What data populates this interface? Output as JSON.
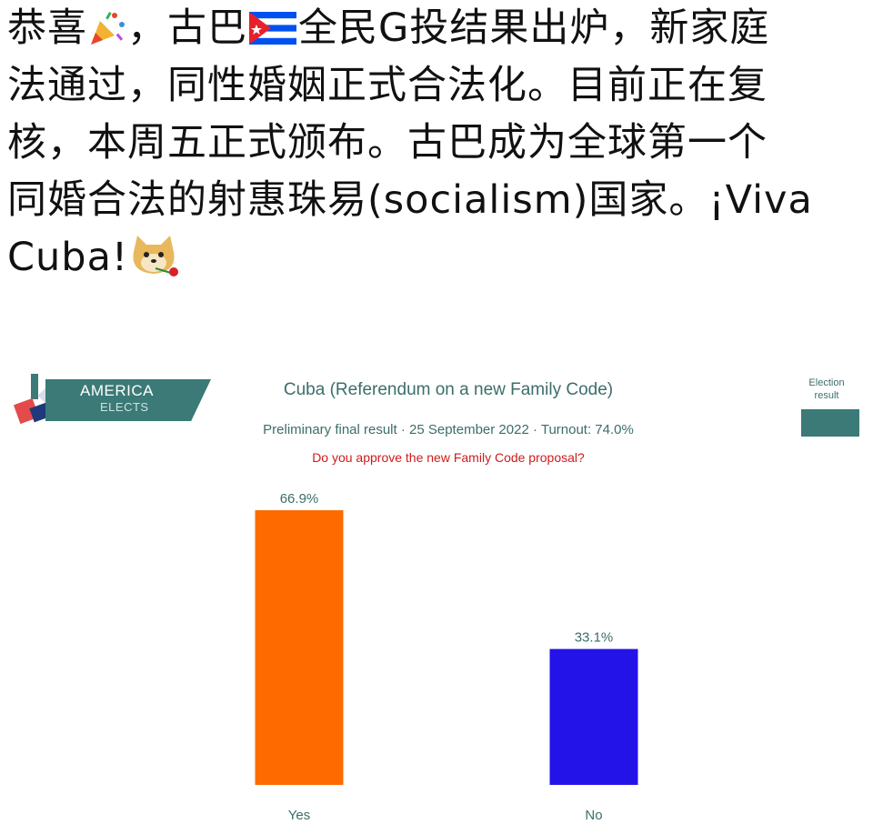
{
  "post": {
    "lines": [
      [
        "恭喜",
        "🎉",
        "，古巴",
        "FLAG",
        "全民G投结果出炉，新家庭"
      ],
      [
        "法通过，同性婚姻正式合法化。目前正在复"
      ],
      [
        "核，本周五正式颁布。古巴成为全球第一个"
      ],
      [
        "同婚合法的射惠珠易(socialism)国家。¡Viva"
      ],
      [
        "Cuba!",
        "🐶"
      ]
    ],
    "emoji": {
      "party": "party-popper-emoji",
      "dog": "doge-with-rose-emoji",
      "flag": "cuba-flag-emoji"
    }
  },
  "logo": {
    "line1": "AMERICA",
    "line2": "ELECTS",
    "color": "#3b7a76"
  },
  "legend": {
    "label_line1": "Election",
    "label_line2": "result",
    "swatch_color": "#3b7a76"
  },
  "chart_data": {
    "type": "bar",
    "title": "Cuba (Referendum on a new Family Code)",
    "subtitle": "Preliminary final result · 25 September 2022 · Turnout: 74.0%",
    "question": "Do you approve the new Family Code proposal?",
    "categories": [
      "Yes",
      "No"
    ],
    "values": [
      66.9,
      33.1
    ],
    "value_labels": [
      "66.9%",
      "33.1%"
    ],
    "colors": [
      "#ff6a00",
      "#2313e8"
    ],
    "ylim": [
      0,
      66.9
    ],
    "grid": false,
    "legend_position": "top-right"
  }
}
